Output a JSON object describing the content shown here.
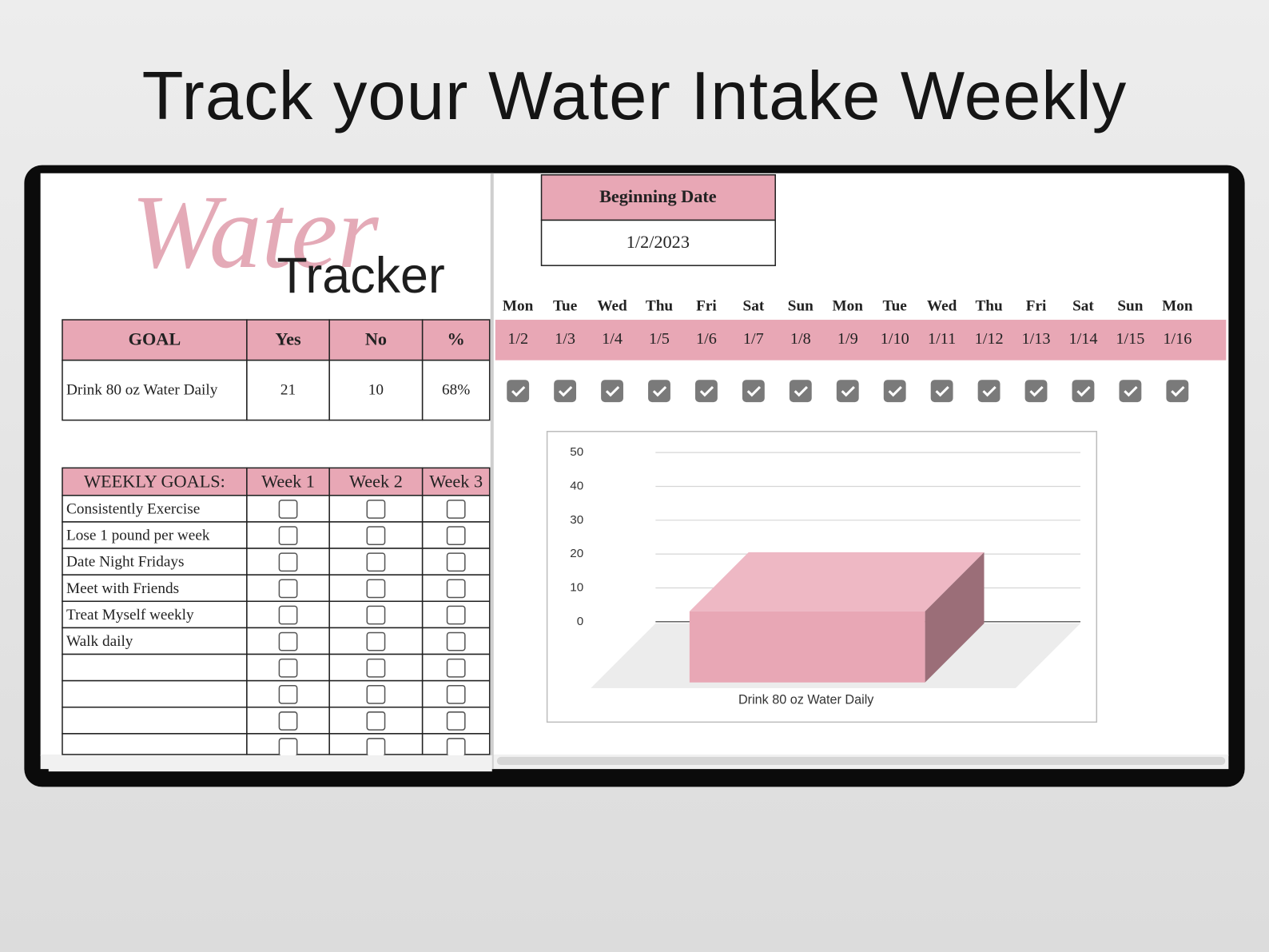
{
  "header": {
    "title": "Track your Water Intake Weekly"
  },
  "logo": {
    "script": "Water",
    "word": "Tracker"
  },
  "goal_table": {
    "headers": [
      "GOAL",
      "Yes",
      "No",
      "%"
    ],
    "rows": [
      [
        "Drink 80 oz Water Daily",
        "21",
        "10",
        "68%"
      ]
    ]
  },
  "weekly_goals": {
    "headers": [
      "WEEKLY GOALS:",
      "Week 1",
      "Week 2",
      "Week 3"
    ],
    "rows": [
      "Consistently Exercise",
      "Lose 1 pound per week",
      "Date Night Fridays",
      "Meet with Friends",
      "Treat Myself weekly",
      "Walk daily"
    ]
  },
  "beginning_date": {
    "label": "Beginning Date",
    "value": "1/2/2023"
  },
  "days": {
    "weekdays": [
      "Mon",
      "Tue",
      "Wed",
      "Thu",
      "Fri",
      "Sat",
      "Sun",
      "Mon",
      "Tue",
      "Wed",
      "Thu",
      "Fri",
      "Sat",
      "Sun",
      "Mon"
    ],
    "dates": [
      "1/2",
      "1/3",
      "1/4",
      "1/5",
      "1/6",
      "1/7",
      "1/8",
      "1/9",
      "1/10",
      "1/11",
      "1/12",
      "1/13",
      "1/14",
      "1/15",
      "1/16"
    ],
    "checked": [
      true,
      true,
      true,
      true,
      true,
      true,
      true,
      true,
      true,
      true,
      true,
      true,
      true,
      true,
      true
    ]
  },
  "chart_data": {
    "type": "bar3d",
    "categories": [
      "Drink 80 oz Water Daily"
    ],
    "values": [
      21
    ],
    "color": "#e8a7b5",
    "ylim": [
      0,
      50
    ],
    "yticks": [
      0,
      10,
      20,
      30,
      40,
      50
    ],
    "grid": true
  }
}
